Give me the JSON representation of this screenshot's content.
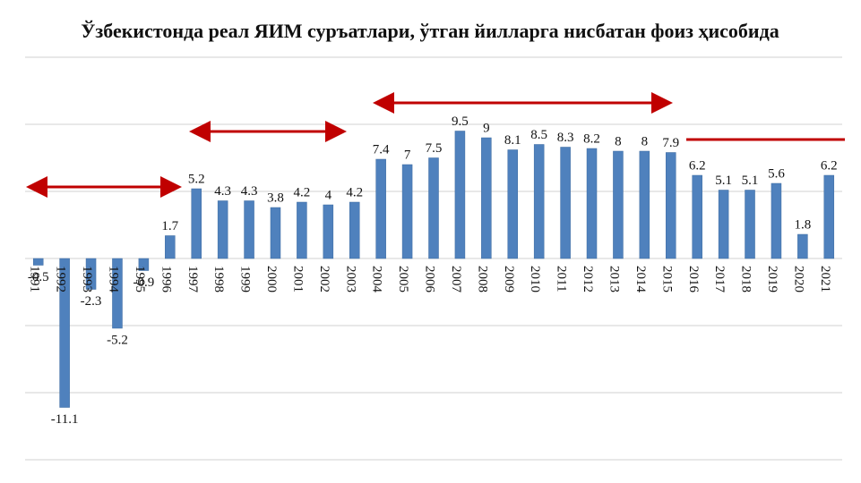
{
  "chart_data": {
    "type": "bar",
    "title": "Ўзбекистонда реал ЯИМ суръатлари, ўтган йилларга нисбатан фоиз ҳисобида",
    "categories": [
      "1991",
      "1992",
      "1993",
      "1994",
      "1995",
      "1996",
      "1997",
      "1998",
      "1999",
      "2000",
      "2001",
      "2002",
      "2003",
      "2004",
      "2005",
      "2006",
      "2007",
      "2008",
      "2009",
      "2010",
      "2011",
      "2012",
      "2013",
      "2014",
      "2015",
      "2016",
      "2017",
      "2018",
      "2019",
      "2020",
      "2021"
    ],
    "values": [
      -0.5,
      -11.1,
      -2.3,
      -5.2,
      -0.9,
      1.7,
      5.2,
      4.3,
      4.3,
      3.8,
      4.2,
      4,
      4.2,
      7.4,
      7,
      7.5,
      9.5,
      9,
      8.1,
      8.5,
      8.3,
      8.2,
      8,
      8,
      7.9,
      6.2,
      5.1,
      5.1,
      5.6,
      1.8,
      6.2
    ],
    "color": "#4f81bd",
    "ylim": [
      -15,
      15
    ],
    "yticks": [
      -15,
      -10,
      -5,
      0,
      5,
      10,
      15
    ],
    "grid": true
  }
}
